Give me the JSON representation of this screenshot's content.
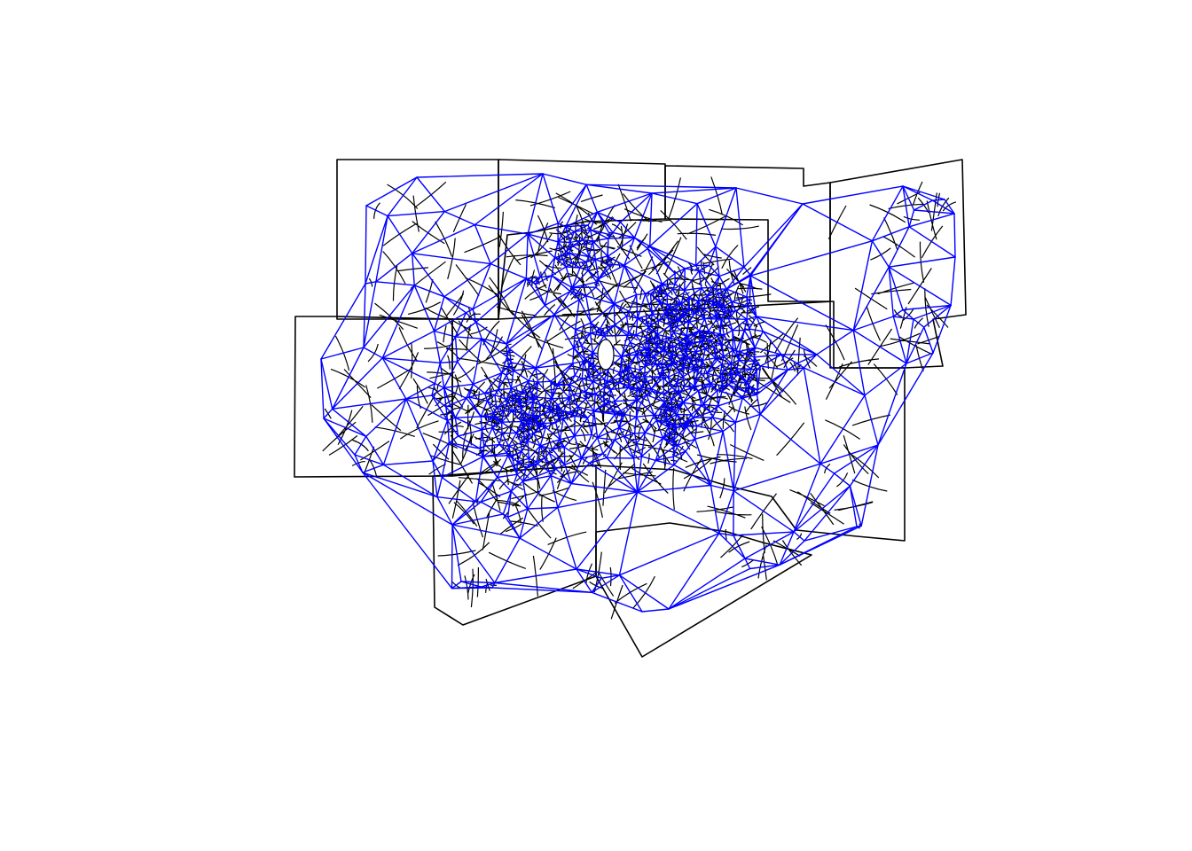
{
  "map": {
    "colors": {
      "background": "#ffffff",
      "boundaries": "#000000",
      "neighbor_links": "#0000ff"
    },
    "layers": [
      {
        "name": "county-boundaries",
        "kind": "polygon outlines"
      },
      {
        "name": "tract-boundaries",
        "kind": "polygon outlines"
      },
      {
        "name": "neighbor-links",
        "kind": "triangulation graph"
      }
    ]
  }
}
